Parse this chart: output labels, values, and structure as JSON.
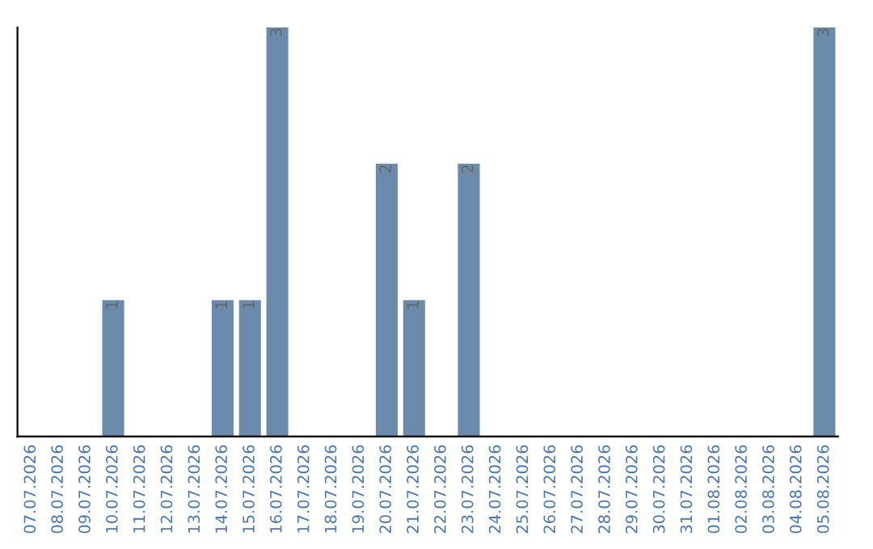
{
  "chart_data": {
    "type": "bar",
    "categories": [
      "07.07.2026",
      "08.07.2026",
      "09.07.2026",
      "10.07.2026",
      "11.07.2026",
      "12.07.2026",
      "13.07.2026",
      "14.07.2026",
      "15.07.2026",
      "16.07.2026",
      "17.07.2026",
      "18.07.2026",
      "19.07.2026",
      "20.07.2026",
      "21.07.2026",
      "22.07.2026",
      "23.07.2026",
      "24.07.2026",
      "25.07.2026",
      "26.07.2026",
      "27.07.2026",
      "28.07.2026",
      "29.07.2026",
      "30.07.2026",
      "31.07.2026",
      "01.08.2026",
      "02.08.2026",
      "03.08.2026",
      "04.08.2026",
      "05.08.2026"
    ],
    "values": [
      0,
      0,
      0,
      1,
      0,
      0,
      0,
      1,
      1,
      3,
      0,
      0,
      0,
      2,
      1,
      0,
      2,
      0,
      0,
      0,
      0,
      0,
      0,
      0,
      0,
      0,
      0,
      0,
      0,
      3
    ],
    "value_labels": [
      null,
      null,
      null,
      "1",
      null,
      null,
      null,
      "1",
      "1",
      "3",
      null,
      null,
      null,
      "2",
      "1",
      null,
      "2",
      null,
      null,
      null,
      null,
      null,
      null,
      null,
      null,
      null,
      null,
      null,
      null,
      "3"
    ],
    "color": "#6a8bab",
    "tick_labels": "x",
    "grid": false,
    "legend": false
  }
}
